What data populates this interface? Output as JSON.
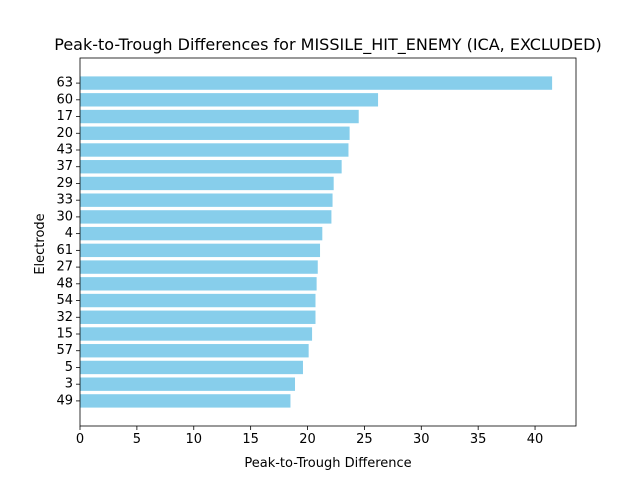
{
  "chart_data": {
    "type": "bar",
    "orientation": "horizontal",
    "title": "Peak-to-Trough Differences for MISSILE_HIT_ENEMY (ICA, EXCLUDED)",
    "xlabel": "Peak-to-Trough Difference",
    "ylabel": "Electrode",
    "categories": [
      "63",
      "60",
      "17",
      "20",
      "43",
      "37",
      "29",
      "33",
      "30",
      "4",
      "61",
      "27",
      "48",
      "54",
      "32",
      "15",
      "57",
      "5",
      "3",
      "49"
    ],
    "values": [
      41.5,
      26.2,
      24.5,
      23.7,
      23.6,
      23.0,
      22.3,
      22.2,
      22.1,
      21.3,
      21.1,
      20.9,
      20.8,
      20.7,
      20.7,
      20.4,
      20.1,
      19.6,
      18.9,
      18.5
    ],
    "xticks": [
      0,
      5,
      10,
      15,
      20,
      25,
      30,
      35,
      40
    ],
    "xlim": [
      0,
      43.6
    ],
    "bar_color": "#87ceeb",
    "grid": false,
    "legend": "none"
  }
}
